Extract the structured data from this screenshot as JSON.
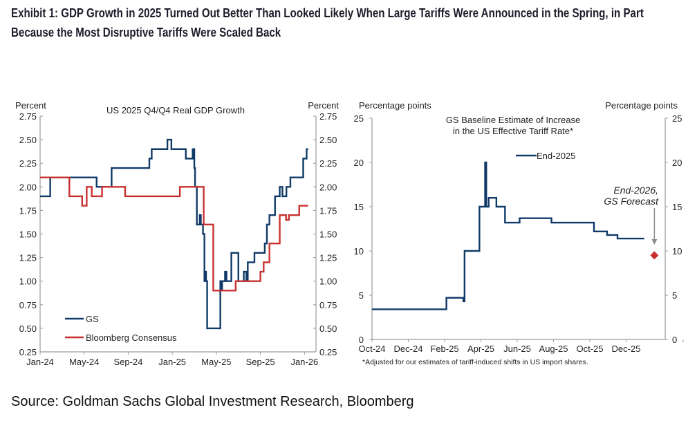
{
  "title": {
    "line1": "Exhibit 1: GDP Growth in 2025 Turned Out Better Than Looked Likely When Large Tariffs Were Announced in the Spring, in Part",
    "line2": "Because the Most Disruptive Tariffs Were Scaled Back"
  },
  "source": "Source: Goldman Sachs Global Investment Research, Bloomberg",
  "chart_data": [
    {
      "type": "line",
      "title": "US 2025 Q4/Q4 Real GDP Growth",
      "ylabel": "Percent",
      "ylabel_right": "Percent",
      "ylim": [
        0.25,
        2.75
      ],
      "yticks": [
        "0.25",
        "0.50",
        "0.75",
        "1.00",
        "1.25",
        "1.50",
        "1.75",
        "2.00",
        "2.25",
        "2.50",
        "2.75"
      ],
      "xticks": [
        "Jan-24",
        "May-24",
        "Sep-24",
        "Jan-25",
        "May-25",
        "Sep-25",
        "Jan-26"
      ],
      "xtick_dates": [
        "2024-01-01",
        "2024-05-01",
        "2024-09-01",
        "2025-01-01",
        "2025-05-01",
        "2025-09-01",
        "2026-01-01"
      ],
      "xlim": [
        "2024-01-01",
        "2026-01-20"
      ],
      "legend_position": "bottom-left",
      "grid": false,
      "step": true,
      "series": [
        {
          "name": "GS",
          "color": "#0f3a68",
          "points": [
            [
              "2024-01-01",
              1.9
            ],
            [
              "2024-01-29",
              2.1
            ],
            [
              "2024-06-05",
              2.0
            ],
            [
              "2024-07-16",
              2.2
            ],
            [
              "2024-10-29",
              2.3
            ],
            [
              "2024-11-05",
              2.4
            ],
            [
              "2024-12-18",
              2.5
            ],
            [
              "2024-12-29",
              2.4
            ],
            [
              "2025-02-08",
              2.3
            ],
            [
              "2025-02-27",
              2.4
            ],
            [
              "2025-03-01",
              2.2
            ],
            [
              "2025-03-03",
              2.0
            ],
            [
              "2025-03-08",
              1.6
            ],
            [
              "2025-03-16",
              1.7
            ],
            [
              "2025-03-19",
              1.6
            ],
            [
              "2025-03-25",
              1.5
            ],
            [
              "2025-03-29",
              1.0
            ],
            [
              "2025-04-01",
              1.1
            ],
            [
              "2025-04-03",
              1.0
            ],
            [
              "2025-04-06",
              0.5
            ],
            [
              "2025-05-12",
              1.0
            ],
            [
              "2025-05-15",
              0.9
            ],
            [
              "2025-05-17",
              1.0
            ],
            [
              "2025-05-25",
              1.1
            ],
            [
              "2025-05-29",
              1.0
            ],
            [
              "2025-06-12",
              1.3
            ],
            [
              "2025-07-01",
              1.0
            ],
            [
              "2025-07-16",
              1.1
            ],
            [
              "2025-07-23",
              1.0
            ],
            [
              "2025-07-27",
              1.2
            ],
            [
              "2025-08-15",
              1.3
            ],
            [
              "2025-09-13",
              1.4
            ],
            [
              "2025-09-19",
              1.6
            ],
            [
              "2025-09-26",
              1.7
            ],
            [
              "2025-10-11",
              1.9
            ],
            [
              "2025-10-24",
              2.0
            ],
            [
              "2025-11-01",
              1.9
            ],
            [
              "2025-11-12",
              2.0
            ],
            [
              "2025-11-23",
              2.1
            ],
            [
              "2025-12-28",
              2.3
            ],
            [
              "2026-01-07",
              2.4
            ],
            [
              "2026-01-11",
              2.4
            ]
          ]
        },
        {
          "name": "Bloomberg Consensus",
          "color": "#c8302f",
          "points": [
            [
              "2024-01-01",
              2.1
            ],
            [
              "2024-03-21",
              1.9
            ],
            [
              "2024-04-26",
              1.8
            ],
            [
              "2024-05-08",
              2.0
            ],
            [
              "2024-05-22",
              1.9
            ],
            [
              "2024-06-20",
              2.0
            ],
            [
              "2024-08-23",
              1.9
            ],
            [
              "2025-01-22",
              2.0
            ],
            [
              "2025-03-27",
              1.6
            ],
            [
              "2025-04-23",
              0.9
            ],
            [
              "2025-06-24",
              1.0
            ],
            [
              "2025-09-01",
              1.1
            ],
            [
              "2025-09-10",
              1.2
            ],
            [
              "2025-09-26",
              1.4
            ],
            [
              "2025-10-24",
              1.7
            ],
            [
              "2025-11-11",
              1.65
            ],
            [
              "2025-11-19",
              1.7
            ],
            [
              "2025-12-17",
              1.8
            ],
            [
              "2026-01-11",
              1.8
            ]
          ]
        }
      ]
    },
    {
      "type": "line",
      "title": "GS Baseline  Estimate of Increase in the US Effective Tariff Rate*",
      "title_line1": "GS Baseline  Estimate of Increase",
      "title_line2": "in the US Effective Tariff Rate*",
      "ylabel": "Percentage points",
      "ylabel_right": "Percentage points",
      "ylim": [
        0,
        25
      ],
      "yticks": [
        "0",
        "5",
        "10",
        "15",
        "20",
        "25"
      ],
      "xticks": [
        "Oct-24",
        "Dec-24",
        "Feb-25",
        "Apr-25",
        "Jun-25",
        "Aug-25",
        "Oct-25",
        "Dec-25"
      ],
      "xtick_dates": [
        "2024-10-01",
        "2024-12-01",
        "2025-02-01",
        "2025-04-01",
        "2025-06-01",
        "2025-08-01",
        "2025-10-01",
        "2025-12-01"
      ],
      "xlim": [
        "2024-10-01",
        "2026-02-06"
      ],
      "legend_position": "top-center",
      "grid": false,
      "step": true,
      "footnote": "*Adjusted for our estimates of tariff-induced shifts in US import shares.",
      "series": [
        {
          "name": "End-2025",
          "color": "#0f3a68",
          "points": [
            [
              "2024-10-01",
              3.4
            ],
            [
              "2025-02-04",
              4.7
            ],
            [
              "2025-03-02",
              4.3
            ],
            [
              "2025-03-04",
              10.0
            ],
            [
              "2025-03-29",
              15.0
            ],
            [
              "2025-04-08",
              20.0
            ],
            [
              "2025-04-10",
              15.0
            ],
            [
              "2025-04-14",
              16.0
            ],
            [
              "2025-04-27",
              15.0
            ],
            [
              "2025-05-11",
              13.2
            ],
            [
              "2025-06-05",
              13.7
            ],
            [
              "2025-07-28",
              13.2
            ],
            [
              "2025-10-08",
              12.2
            ],
            [
              "2025-10-30",
              11.8
            ],
            [
              "2025-11-17",
              11.4
            ],
            [
              "2026-01-01",
              11.4
            ]
          ]
        }
      ],
      "forecast": {
        "label_line1": "End-2026,",
        "label_line2": "GS Forecast",
        "date": "2026-01-18",
        "value": 9.5,
        "color": "#c8302f",
        "arrow_color": "#8c8c8c"
      }
    }
  ]
}
